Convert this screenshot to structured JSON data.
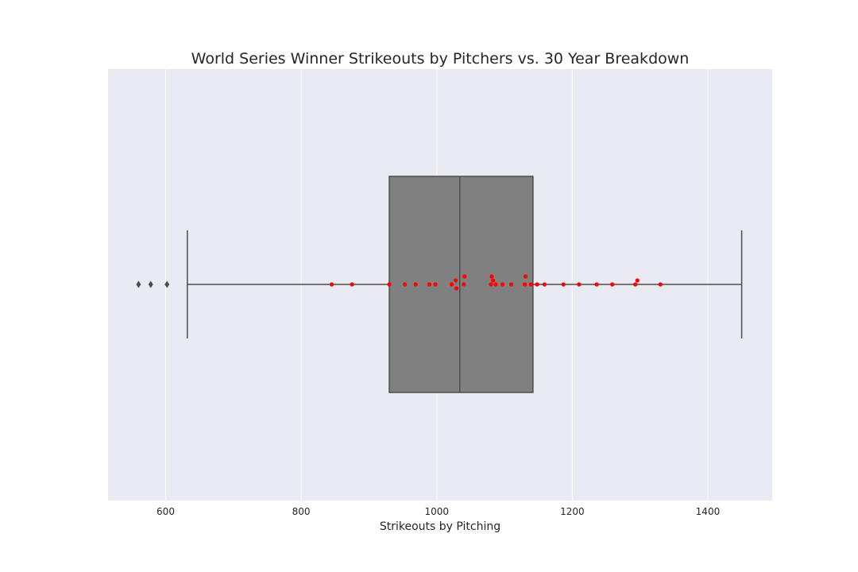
{
  "chart_data": {
    "type": "boxplot",
    "title": "World Series Winner Strikeouts by Pitchers vs. 30 Year Breakdown",
    "xlabel": "Strikeouts by Pitching",
    "ylabel": "",
    "xlim": [
      515,
      1495
    ],
    "xticks": [
      600,
      800,
      1000,
      1200,
      1400
    ],
    "grid": true,
    "box": {
      "whisker_low": 632,
      "q1": 930,
      "median": 1034,
      "q3": 1142,
      "whisker_high": 1450,
      "outliers": [
        560,
        578,
        602
      ],
      "color": "#808080",
      "line_color": "#4d4d4d"
    },
    "swarm": {
      "color": "#ff0000",
      "values": [
        845,
        875,
        930,
        953,
        969,
        989,
        998,
        1022,
        1028,
        1029,
        1040,
        1041,
        1080,
        1081,
        1083,
        1087,
        1097,
        1110,
        1130,
        1131,
        1139,
        1148,
        1159,
        1187,
        1210,
        1236,
        1259,
        1293,
        1296,
        1330
      ]
    },
    "colors": {
      "plot_background": "#eaeaf2",
      "grid": "#ffffff",
      "outlier": "#4d4d4d"
    }
  }
}
